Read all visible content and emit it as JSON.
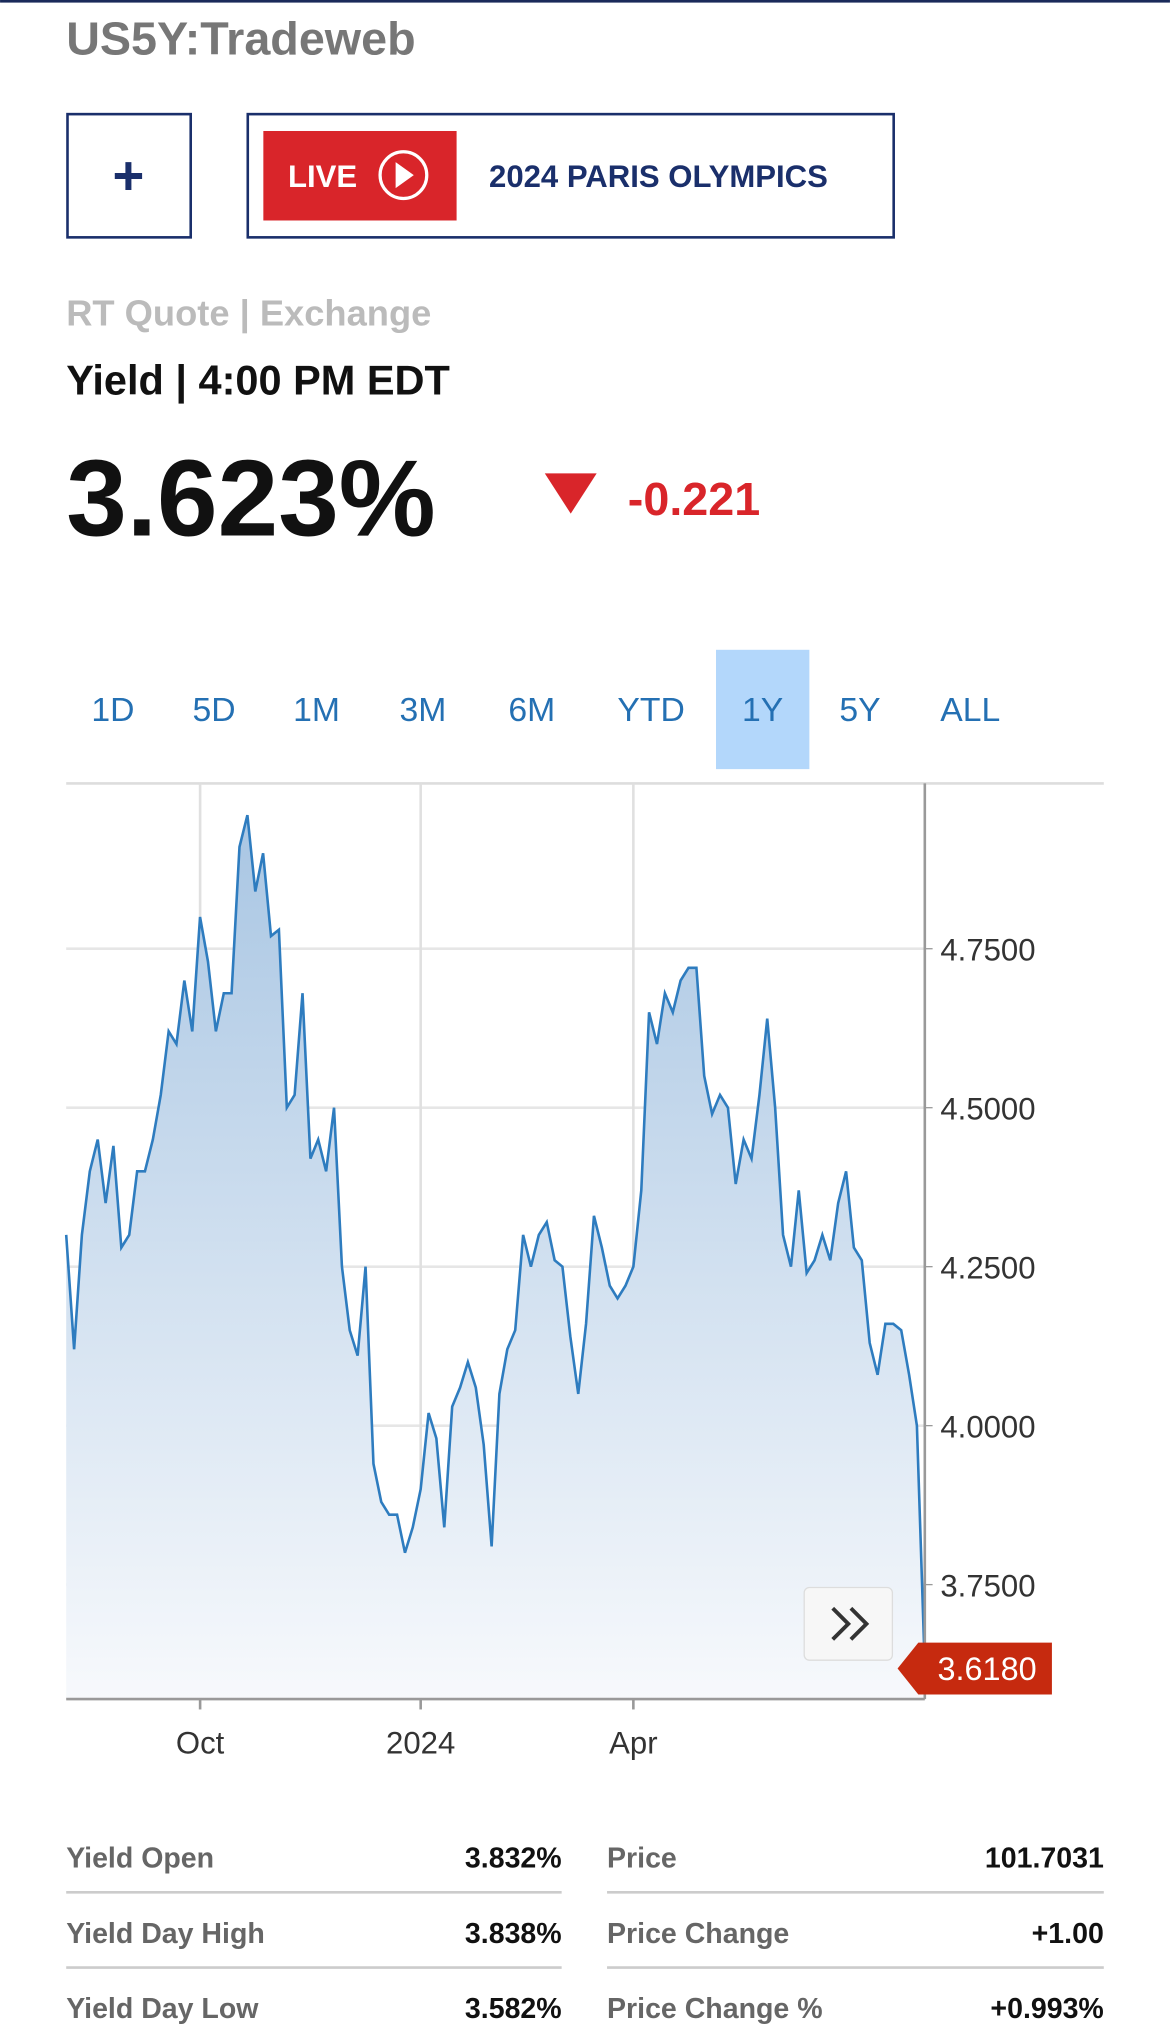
{
  "header": {
    "symbol": "US5Y:Tradeweb",
    "add_button": "+",
    "live_badge": "LIVE",
    "banner": "2024 PARIS OLYMPICS"
  },
  "quote": {
    "source": "RT Quote | Exchange",
    "label": "Yield | 4:00 PM EDT",
    "value": "3.623%",
    "change": "-0.221"
  },
  "ranges": {
    "options": [
      "1D",
      "5D",
      "1M",
      "3M",
      "6M",
      "YTD",
      "1Y",
      "5Y",
      "ALL"
    ],
    "active": "1Y"
  },
  "chart_data": {
    "type": "area",
    "color": "#2e7cbf",
    "grid": true,
    "values": [
      4.3,
      4.12,
      4.3,
      4.4,
      4.45,
      4.35,
      4.44,
      4.28,
      4.3,
      4.4,
      4.4,
      4.45,
      4.52,
      4.62,
      4.6,
      4.7,
      4.62,
      4.8,
      4.73,
      4.62,
      4.68,
      4.68,
      4.91,
      4.96,
      4.84,
      4.9,
      4.77,
      4.78,
      4.5,
      4.52,
      4.68,
      4.42,
      4.45,
      4.4,
      4.5,
      4.25,
      4.15,
      4.11,
      4.25,
      3.94,
      3.88,
      3.86,
      3.86,
      3.8,
      3.84,
      3.9,
      4.02,
      3.98,
      3.84,
      4.03,
      4.06,
      4.1,
      4.06,
      3.97,
      3.81,
      4.05,
      4.12,
      4.15,
      4.3,
      4.25,
      4.3,
      4.32,
      4.26,
      4.25,
      4.14,
      4.05,
      4.16,
      4.33,
      4.28,
      4.22,
      4.2,
      4.22,
      4.25,
      4.37,
      4.65,
      4.6,
      4.68,
      4.65,
      4.7,
      4.72,
      4.72,
      4.55,
      4.49,
      4.52,
      4.5,
      4.38,
      4.45,
      4.42,
      4.52,
      4.64,
      4.5,
      4.3,
      4.25,
      4.37,
      4.24,
      4.26,
      4.3,
      4.26,
      4.35,
      4.4,
      4.28,
      4.26,
      4.13,
      4.08,
      4.16,
      4.16,
      4.15,
      4.08,
      4.0,
      3.618
    ],
    "value_labels": [
      null,
      null,
      null,
      null,
      null,
      null,
      null,
      null,
      null,
      null,
      null,
      null,
      null,
      null,
      null,
      null,
      null,
      null,
      null,
      null,
      null,
      null,
      null,
      null,
      null,
      null,
      null,
      null,
      null,
      null,
      null,
      null,
      null,
      null,
      null,
      null,
      null,
      null,
      null,
      null,
      null,
      null,
      null,
      null,
      null,
      null,
      null,
      null,
      null,
      null,
      null,
      null,
      null,
      null,
      null,
      null,
      null,
      null,
      null,
      null,
      null,
      null,
      null,
      null,
      null,
      null,
      null,
      null,
      null,
      null,
      null,
      null,
      null,
      null,
      null,
      null,
      null,
      null,
      null,
      null,
      null,
      null,
      null,
      null,
      null,
      null,
      null,
      null,
      null,
      null,
      null,
      null,
      null,
      null,
      null,
      null,
      null,
      null,
      null,
      null,
      null,
      null,
      null,
      null,
      null,
      null,
      null,
      null,
      null,
      "3.6180"
    ],
    "xlim": [
      0,
      109
    ],
    "xticks": [
      {
        "value": 17,
        "label": "Oct"
      },
      {
        "value": 45,
        "label": "2024"
      },
      {
        "value": 72,
        "label": "Apr"
      }
    ],
    "ylim": [
      3.57,
      5.01
    ],
    "yticks": [
      {
        "value": 3.75,
        "label": "3.7500"
      },
      {
        "value": 4.0,
        "label": "4.0000"
      },
      {
        "value": 4.25,
        "label": "4.2500"
      },
      {
        "value": 4.5,
        "label": "4.5000"
      },
      {
        "value": 4.75,
        "label": "4.7500"
      }
    ]
  },
  "stats": {
    "rows": [
      [
        "Yield Open",
        "3.832%",
        "Price",
        "101.7031"
      ],
      [
        "Yield Day High",
        "3.838%",
        "Price Change",
        "+1.00"
      ],
      [
        "Yield Day Low",
        "3.582%",
        "Price Change %",
        "+0.993%"
      ]
    ]
  }
}
